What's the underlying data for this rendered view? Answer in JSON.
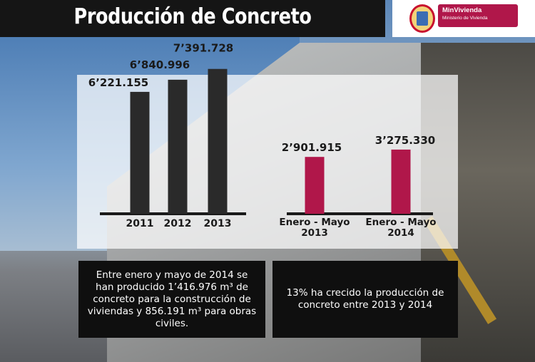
{
  "header": {
    "title": "Producción de Concreto"
  },
  "logo": {
    "brand_name": "MinVivienda",
    "brand_subtitle": "Ministerio de Vivienda",
    "brand_color": "#b0174a"
  },
  "chart_data": [
    {
      "type": "bar",
      "categories": [
        "2011",
        "2012",
        "2013"
      ],
      "values": [
        6221155,
        6840996,
        7391728
      ],
      "value_labels": [
        "6’221.155",
        "6’840.996",
        "7’391.728"
      ],
      "bar_color": "#2a2a2a"
    },
    {
      "type": "bar",
      "categories": [
        "Enero - Mayo 2013",
        "Enero - Mayo 2014"
      ],
      "category_lines": [
        [
          "Enero - Mayo",
          "2013"
        ],
        [
          "Enero - Mayo",
          "2014"
        ]
      ],
      "values": [
        2901915,
        3275330
      ],
      "value_labels": [
        "2’901.915",
        "3’275.330"
      ],
      "bar_color": "#b0174a"
    }
  ],
  "notes": {
    "left": "Entre enero y mayo de 2014 se han producido 1’416.976 m³ de concreto para la construcción de viviendas y 856.191 m³ para obras civiles.",
    "right": "13% ha crecido la producción de concreto entre 2013 y 2014"
  }
}
